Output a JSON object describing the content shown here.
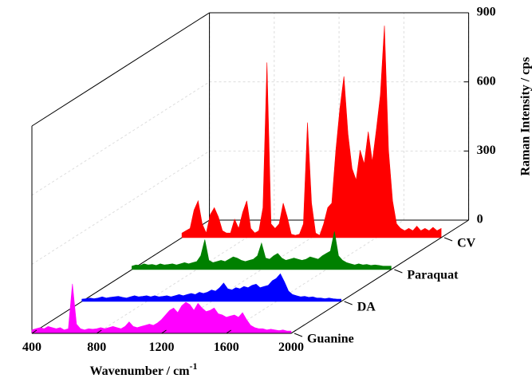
{
  "chart_data": {
    "type": "waterfall",
    "xlabel": "Wavenumber / cm",
    "xlabel_superscript": "-1",
    "ylabel": "Raman Intensity / cps",
    "xlim": [
      400,
      2000
    ],
    "xticks": [
      400,
      800,
      1200,
      1600,
      2000
    ],
    "ylim": [
      0,
      900
    ],
    "yticks": [
      0,
      300,
      600,
      900
    ],
    "grid": true,
    "x": [
      400,
      425,
      450,
      475,
      500,
      525,
      550,
      575,
      600,
      625,
      650,
      675,
      700,
      725,
      750,
      775,
      800,
      825,
      850,
      875,
      900,
      925,
      950,
      975,
      1000,
      1025,
      1050,
      1075,
      1100,
      1125,
      1150,
      1175,
      1200,
      1225,
      1250,
      1275,
      1300,
      1325,
      1350,
      1375,
      1400,
      1425,
      1450,
      1475,
      1500,
      1525,
      1550,
      1575,
      1600,
      1625,
      1650,
      1675,
      1700,
      1725,
      1750,
      1775,
      1800,
      1825,
      1850,
      1875,
      1900,
      1925,
      1950,
      1975,
      2000
    ],
    "series": [
      {
        "name": "CV",
        "color": "#ff0000",
        "values": [
          20,
          30,
          40,
          120,
          160,
          60,
          20,
          100,
          130,
          90,
          30,
          20,
          20,
          80,
          40,
          110,
          160,
          40,
          20,
          30,
          130,
          760,
          60,
          40,
          60,
          150,
          90,
          15,
          10,
          15,
          60,
          500,
          150,
          20,
          10,
          60,
          130,
          150,
          380,
          560,
          700,
          450,
          300,
          250,
          380,
          320,
          460,
          330,
          470,
          620,
          920,
          380,
          160,
          60,
          40,
          30,
          40,
          30,
          50,
          30,
          40,
          30,
          45,
          30,
          40
        ]
      },
      {
        "name": "Paraquat",
        "color": "#008000",
        "values": [
          15,
          20,
          18,
          25,
          20,
          22,
          18,
          25,
          20,
          22,
          25,
          20,
          25,
          30,
          25,
          30,
          35,
          60,
          130,
          40,
          30,
          35,
          40,
          35,
          45,
          55,
          50,
          40,
          35,
          40,
          45,
          60,
          115,
          50,
          45,
          60,
          70,
          50,
          40,
          45,
          50,
          45,
          40,
          45,
          55,
          50,
          45,
          60,
          70,
          80,
          165,
          60,
          40,
          30,
          25,
          20,
          25,
          20,
          22,
          18,
          20,
          18,
          15,
          15,
          15
        ]
      },
      {
        "name": "DA",
        "color": "#0000ff",
        "values": [
          10,
          12,
          15,
          12,
          15,
          20,
          15,
          18,
          20,
          22,
          18,
          15,
          20,
          25,
          20,
          22,
          25,
          20,
          25,
          20,
          22,
          25,
          20,
          25,
          30,
          25,
          30,
          35,
          30,
          40,
          35,
          40,
          50,
          45,
          60,
          80,
          55,
          50,
          60,
          55,
          65,
          60,
          70,
          75,
          60,
          65,
          70,
          90,
          100,
          120,
          85,
          45,
          30,
          25,
          20,
          22,
          18,
          20,
          15,
          15,
          12,
          15,
          12,
          10,
          10
        ]
      },
      {
        "name": "Guanine",
        "color": "#ff00ff",
        "values": [
          15,
          20,
          25,
          20,
          30,
          25,
          20,
          25,
          15,
          20,
          215,
          40,
          20,
          15,
          20,
          18,
          20,
          25,
          20,
          25,
          30,
          25,
          20,
          30,
          50,
          30,
          25,
          30,
          35,
          40,
          35,
          45,
          60,
          80,
          100,
          110,
          90,
          120,
          135,
          125,
          100,
          130,
          110,
          95,
          100,
          110,
          85,
          80,
          70,
          75,
          80,
          70,
          90,
          60,
          35,
          25,
          20,
          20,
          15,
          18,
          15,
          12,
          15,
          10,
          10
        ]
      }
    ]
  }
}
